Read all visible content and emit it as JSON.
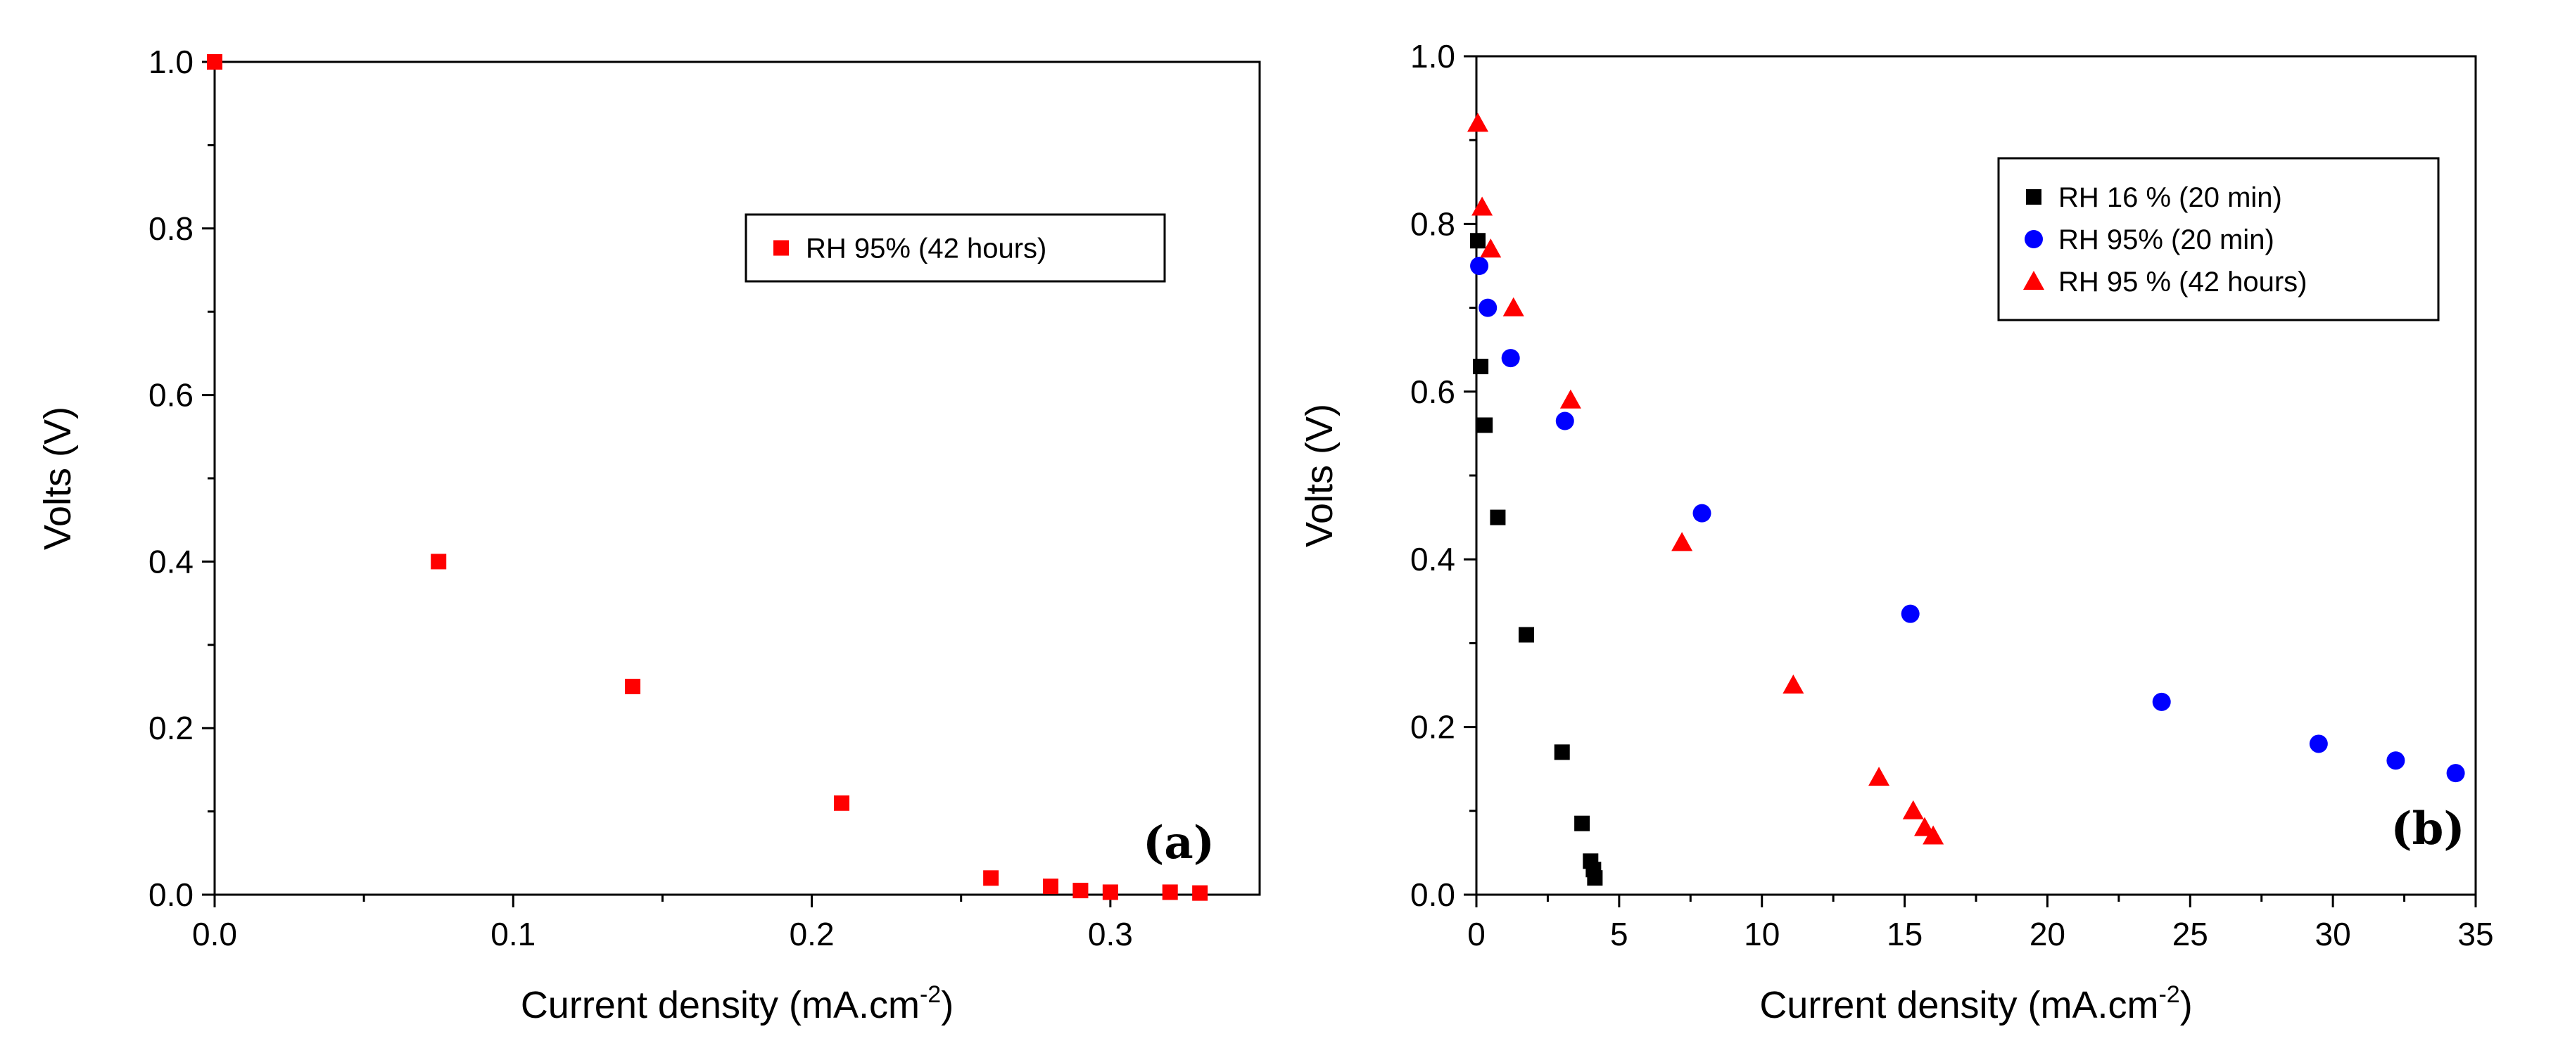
{
  "chart_data": [
    {
      "type": "scatter",
      "panel_label": "(a)",
      "xlabel": "Current density (mA.cm",
      "xlabel_sup": "-2",
      "xlabel_suffix": ")",
      "ylabel": "Volts (V)",
      "xlim": [
        0,
        0.35
      ],
      "ylim": [
        0,
        1.0
      ],
      "xticks": [
        "0.0",
        "0.1",
        "0.2",
        "0.3"
      ],
      "yticks": [
        "0.0",
        "0.2",
        "0.4",
        "0.6",
        "0.8",
        "1.0"
      ],
      "grid": false,
      "legend_position": "top-right",
      "series": [
        {
          "name": "RH 95% (42 hours)",
          "color": "#ff0000",
          "marker": "square",
          "x": [
            0.0,
            0.075,
            0.14,
            0.21,
            0.26,
            0.28,
            0.29,
            0.3,
            0.32,
            0.33
          ],
          "y": [
            1.0,
            0.4,
            0.25,
            0.11,
            0.02,
            0.01,
            0.005,
            0.003,
            0.003,
            0.002
          ]
        }
      ]
    },
    {
      "type": "scatter",
      "panel_label": "(b)",
      "xlabel": "Current density (mA.cm",
      "xlabel_sup": "-2",
      "xlabel_suffix": ")",
      "ylabel": "Volts (V)",
      "xlim": [
        0,
        35
      ],
      "ylim": [
        0,
        1.0
      ],
      "xticks": [
        "0",
        "5",
        "10",
        "15",
        "20",
        "25",
        "30",
        "35"
      ],
      "yticks": [
        "0.0",
        "0.2",
        "0.4",
        "0.6",
        "0.8",
        "1.0"
      ],
      "grid": false,
      "legend_position": "top-right",
      "series": [
        {
          "name": "RH 16 % (20 min)",
          "color": "#000000",
          "marker": "square",
          "x": [
            0.05,
            0.15,
            0.3,
            0.75,
            1.75,
            3.0,
            3.7,
            4.0,
            4.1,
            4.15
          ],
          "y": [
            0.78,
            0.63,
            0.56,
            0.45,
            0.31,
            0.17,
            0.085,
            0.04,
            0.03,
            0.02
          ]
        },
        {
          "name": "RH 95% (20 min)",
          "color": "#0000ff",
          "marker": "circle",
          "x": [
            0.1,
            0.4,
            1.2,
            3.1,
            7.9,
            15.2,
            24.0,
            29.5,
            32.2,
            34.3
          ],
          "y": [
            0.75,
            0.7,
            0.64,
            0.565,
            0.455,
            0.335,
            0.23,
            0.18,
            0.16,
            0.145
          ]
        },
        {
          "name": "RH 95 % (42 hours)",
          "color": "#ff0000",
          "marker": "triangle",
          "x": [
            0.05,
            0.2,
            0.5,
            1.3,
            3.3,
            7.2,
            11.1,
            14.1,
            15.3,
            15.7,
            16.0
          ],
          "y": [
            0.92,
            0.82,
            0.77,
            0.7,
            0.59,
            0.42,
            0.25,
            0.14,
            0.1,
            0.08,
            0.07
          ]
        }
      ]
    }
  ]
}
